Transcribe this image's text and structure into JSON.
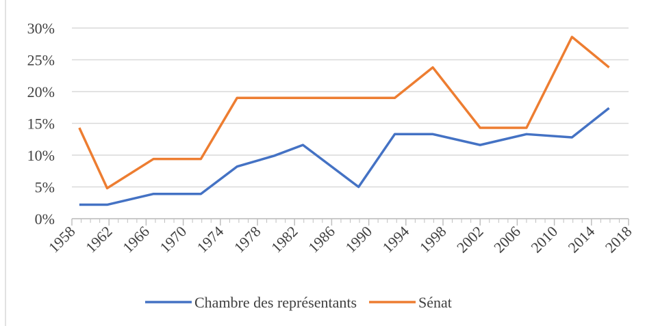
{
  "chart_data": {
    "type": "line",
    "x": [
      1958.8,
      1961.8,
      1966.8,
      1971.9,
      1975.8,
      1979.8,
      1982.9,
      1988.9,
      1992.8,
      1996.9,
      2002.0,
      2007.0,
      2011.9,
      2015.9
    ],
    "series": [
      {
        "name": "Chambre des représentants",
        "color": "#4472c4",
        "values": [
          2.2,
          2.2,
          3.9,
          3.9,
          8.2,
          9.9,
          11.6,
          5.0,
          13.3,
          13.3,
          11.6,
          13.3,
          12.8,
          17.4
        ]
      },
      {
        "name": "Sénat",
        "color": "#ed7d31",
        "values": [
          14.3,
          4.8,
          9.4,
          9.4,
          19.0,
          19.0,
          19.0,
          19.0,
          19.0,
          23.8,
          14.3,
          14.3,
          28.6,
          23.8
        ]
      }
    ],
    "xlim": [
      1958,
      2018
    ],
    "xticks": [
      1958,
      1962,
      1966,
      1970,
      1974,
      1978,
      1982,
      1986,
      1990,
      1994,
      1998,
      2002,
      2006,
      2010,
      2014,
      2018
    ],
    "ylim": [
      0,
      30
    ],
    "yticks": [
      {
        "value": 0,
        "label": "0%"
      },
      {
        "value": 5,
        "label": "5%"
      },
      {
        "value": 10,
        "label": "10%"
      },
      {
        "value": 15,
        "label": "15%"
      },
      {
        "value": 20,
        "label": "20%"
      },
      {
        "value": 25,
        "label": "25%"
      },
      {
        "value": 30,
        "label": "30%"
      }
    ],
    "grid": true,
    "legend": "bottom"
  }
}
